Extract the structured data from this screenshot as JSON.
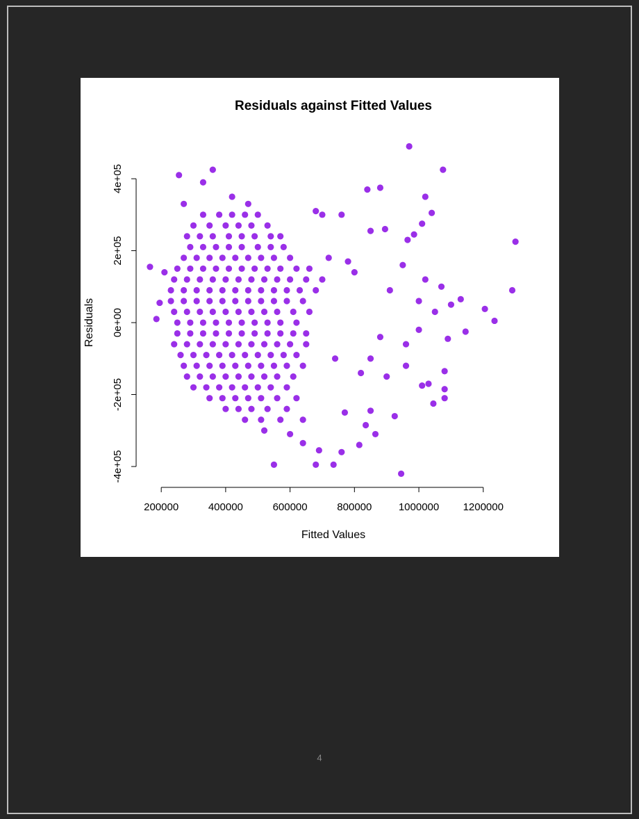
{
  "chart_data": {
    "type": "scatter",
    "title": "Residuals against Fitted Values",
    "x_label": "Fitted Values",
    "y_label": "Residuals",
    "color": "#9a2fe8",
    "xlim": [
      122000,
      1345000
    ],
    "ylim": [
      -458000,
      520000
    ],
    "xticks": [
      200000,
      400000,
      600000,
      800000,
      1000000,
      1200000
    ],
    "yticks": [
      {
        "value": -400000,
        "label": "-4e+05"
      },
      {
        "value": -200000,
        "label": "-2e+05"
      },
      {
        "value": 0,
        "label": "0e+00"
      },
      {
        "value": 200000,
        "label": "2e+05"
      },
      {
        "value": 400000,
        "label": "4e+05"
      }
    ],
    "x": [
      330000,
      380000,
      420000,
      460000,
      500000,
      300000,
      350000,
      400000,
      440000,
      480000,
      530000,
      280000,
      320000,
      360000,
      410000,
      450000,
      490000,
      540000,
      570000,
      290000,
      330000,
      370000,
      410000,
      450000,
      500000,
      540000,
      580000,
      270000,
      310000,
      350000,
      390000,
      430000,
      470000,
      510000,
      550000,
      600000,
      250000,
      290000,
      330000,
      370000,
      410000,
      450000,
      490000,
      530000,
      570000,
      620000,
      660000,
      240000,
      280000,
      320000,
      360000,
      400000,
      440000,
      480000,
      520000,
      560000,
      600000,
      650000,
      700000,
      230000,
      270000,
      310000,
      350000,
      390000,
      430000,
      470000,
      510000,
      550000,
      590000,
      630000,
      680000,
      230000,
      270000,
      310000,
      350000,
      390000,
      430000,
      470000,
      510000,
      550000,
      590000,
      640000,
      240000,
      280000,
      320000,
      360000,
      400000,
      440000,
      480000,
      520000,
      560000,
      610000,
      660000,
      250000,
      290000,
      330000,
      370000,
      410000,
      450000,
      490000,
      530000,
      570000,
      620000,
      250000,
      290000,
      330000,
      370000,
      410000,
      450000,
      490000,
      530000,
      570000,
      610000,
      650000,
      240000,
      280000,
      320000,
      360000,
      400000,
      440000,
      480000,
      520000,
      560000,
      600000,
      650000,
      260000,
      300000,
      340000,
      380000,
      420000,
      460000,
      500000,
      540000,
      580000,
      620000,
      270000,
      310000,
      350000,
      390000,
      430000,
      470000,
      510000,
      550000,
      590000,
      640000,
      280000,
      320000,
      360000,
      400000,
      440000,
      480000,
      520000,
      560000,
      610000,
      300000,
      340000,
      380000,
      420000,
      460000,
      500000,
      540000,
      590000,
      350000,
      390000,
      430000,
      470000,
      510000,
      560000,
      620000,
      400000,
      440000,
      480000,
      530000,
      590000,
      460000,
      510000,
      570000,
      640000,
      970000,
      1075000,
      360000,
      255000,
      330000,
      1300000,
      1290000,
      1235000,
      1205000,
      1145000,
      1130000,
      1090000,
      1080000,
      1080000,
      1045000,
      1040000,
      1020000,
      1010000,
      985000,
      965000,
      945000,
      925000,
      880000,
      840000,
      895000,
      850000,
      760000,
      680000,
      700000,
      165000,
      185000,
      195000,
      210000,
      550000,
      680000,
      735000,
      760000,
      690000,
      640000,
      815000,
      865000,
      835000,
      770000,
      850000,
      1010000,
      1030000,
      1080000,
      960000,
      900000,
      820000,
      1000000,
      1020000,
      950000,
      910000,
      1050000,
      960000,
      880000,
      800000,
      780000,
      720000,
      740000,
      850000,
      1000000,
      1070000,
      1100000,
      600000,
      520000,
      470000,
      420000,
      270000
    ],
    "values": [
      300000,
      300000,
      300000,
      300000,
      300000,
      270000,
      270000,
      270000,
      270000,
      270000,
      270000,
      240000,
      240000,
      240000,
      240000,
      240000,
      240000,
      240000,
      240000,
      210000,
      210000,
      210000,
      210000,
      210000,
      210000,
      210000,
      210000,
      180000,
      180000,
      180000,
      180000,
      180000,
      180000,
      180000,
      180000,
      180000,
      150000,
      150000,
      150000,
      150000,
      150000,
      150000,
      150000,
      150000,
      150000,
      150000,
      150000,
      120000,
      120000,
      120000,
      120000,
      120000,
      120000,
      120000,
      120000,
      120000,
      120000,
      120000,
      120000,
      90000,
      90000,
      90000,
      90000,
      90000,
      90000,
      90000,
      90000,
      90000,
      90000,
      90000,
      90000,
      60000,
      60000,
      60000,
      60000,
      60000,
      60000,
      60000,
      60000,
      60000,
      60000,
      60000,
      30000,
      30000,
      30000,
      30000,
      30000,
      30000,
      30000,
      30000,
      30000,
      30000,
      30000,
      0,
      0,
      0,
      0,
      0,
      0,
      0,
      0,
      0,
      0,
      -30000,
      -30000,
      -30000,
      -30000,
      -30000,
      -30000,
      -30000,
      -30000,
      -30000,
      -30000,
      -30000,
      -60000,
      -60000,
      -60000,
      -60000,
      -60000,
      -60000,
      -60000,
      -60000,
      -60000,
      -60000,
      -60000,
      -90000,
      -90000,
      -90000,
      -90000,
      -90000,
      -90000,
      -90000,
      -90000,
      -90000,
      -90000,
      -120000,
      -120000,
      -120000,
      -120000,
      -120000,
      -120000,
      -120000,
      -120000,
      -120000,
      -120000,
      -150000,
      -150000,
      -150000,
      -150000,
      -150000,
      -150000,
      -150000,
      -150000,
      -150000,
      -180000,
      -180000,
      -180000,
      -180000,
      -180000,
      -180000,
      -180000,
      -180000,
      -210000,
      -210000,
      -210000,
      -210000,
      -210000,
      -210000,
      -210000,
      -240000,
      -240000,
      -240000,
      -240000,
      -240000,
      -270000,
      -270000,
      -270000,
      -270000,
      490000,
      425000,
      425000,
      410000,
      390000,
      225000,
      90000,
      5000,
      38000,
      -25000,
      65000,
      -45000,
      -185000,
      -210000,
      -225000,
      305000,
      350000,
      275000,
      245000,
      230000,
      -420000,
      -260000,
      375000,
      370000,
      260000,
      255000,
      300000,
      310000,
      300000,
      155000,
      10000,
      55000,
      140000,
      -395000,
      -395000,
      -395000,
      -360000,
      -355000,
      -335000,
      -340000,
      -310000,
      -285000,
      -250000,
      -245000,
      -175000,
      -170000,
      -135000,
      -120000,
      -150000,
      -140000,
      60000,
      120000,
      160000,
      90000,
      30000,
      -60000,
      -40000,
      140000,
      170000,
      180000,
      -100000,
      -100000,
      -20000,
      100000,
      50000,
      -310000,
      -300000,
      330000,
      350000,
      330000
    ]
  },
  "page_number": "4"
}
